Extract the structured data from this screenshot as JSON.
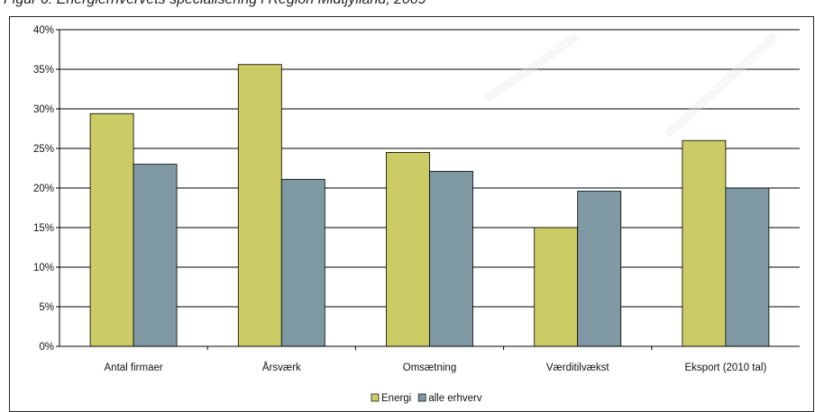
{
  "caption": "Figur 6: Energierhvervets specialisering i Region Midtjylland, 2009",
  "colors": {
    "energi": "#cccc66",
    "alle_erhverv": "#7f99a5",
    "gridline": "#000000",
    "watermark": "#e8e8e8"
  },
  "chart_data": {
    "type": "bar",
    "title": "",
    "xlabel": "",
    "ylabel": "",
    "categories": [
      "Antal firmaer",
      "Årsværk",
      "Omsætning",
      "Værditilvækst",
      "Eksport (2010 tal)"
    ],
    "series": [
      {
        "name": "Energi",
        "values": [
          29.4,
          35.6,
          24.5,
          15.0,
          26.0
        ]
      },
      {
        "name": "alle erhverv",
        "values": [
          23.0,
          21.1,
          22.1,
          19.6,
          20.0
        ]
      }
    ],
    "ylim": [
      0,
      40
    ],
    "yticks": [
      "0%",
      "5%",
      "10%",
      "15%",
      "20%",
      "25%",
      "30%",
      "35%",
      "40%"
    ],
    "grid": true,
    "legend_position": "bottom-center"
  }
}
